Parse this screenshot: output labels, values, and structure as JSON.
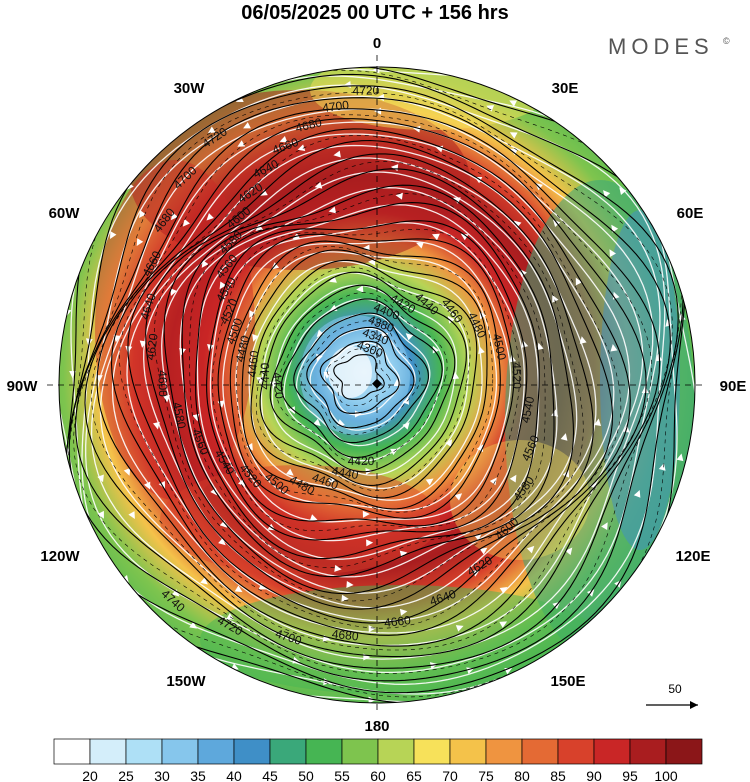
{
  "title": "06/05/2025  00 UTC  + 156 hrs",
  "brand": "MODES",
  "brand_mark": "©",
  "longitude_labels": {
    "n": "0",
    "ne": "30E",
    "e60": "60E",
    "e": "90E",
    "e120": "120E",
    "e150": "150E",
    "s": "180",
    "w150": "150W",
    "w120": "120W",
    "w": "90W",
    "w60": "60W",
    "w30": "30W"
  },
  "contour_labels": [
    "4300",
    "4340",
    "4380",
    "4400",
    "4420",
    "4440",
    "4460",
    "4480",
    "4500",
    "4520",
    "4540",
    "4560",
    "4580",
    "4600",
    "4620",
    "4640",
    "4660",
    "4680",
    "4700",
    "4720",
    "4740",
    "4760",
    "4780"
  ],
  "wind_reference": {
    "value": "50"
  },
  "colorbar": {
    "labels": [
      "20",
      "25",
      "30",
      "35",
      "40",
      "45",
      "50",
      "55",
      "60",
      "65",
      "70",
      "75",
      "80",
      "85",
      "90",
      "95",
      "100"
    ],
    "colors": [
      "#ffffff",
      "#d4eefa",
      "#aee0f6",
      "#86c6ec",
      "#5ea8dc",
      "#3f8fc7",
      "#3aa87a",
      "#46b553",
      "#7ec44e",
      "#b7d456",
      "#f7e15a",
      "#f4c24a",
      "#ef9440",
      "#e46a34",
      "#d8412b",
      "#c92626",
      "#a91d1f",
      "#8b1618"
    ]
  }
}
